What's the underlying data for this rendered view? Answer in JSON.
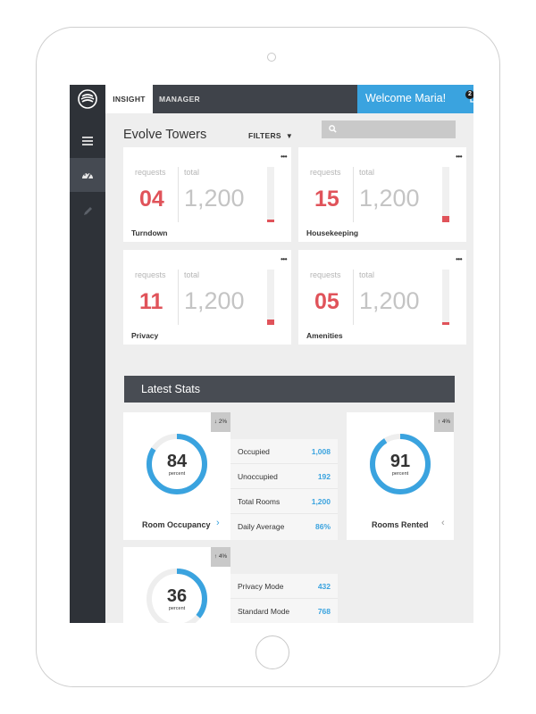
{
  "colors": {
    "accent_blue": "#3aa3df",
    "accent_red": "#e0535a",
    "sidebar": "#2e3238",
    "topbar": "#3f434a"
  },
  "sidebar": {
    "icons": [
      "logo-icon",
      "menu-icon",
      "dashboard-icon",
      "pencil-icon"
    ]
  },
  "topbar": {
    "tabs": [
      {
        "label": "INSIGHT",
        "active": true
      },
      {
        "label": "MANAGER",
        "active": false
      }
    ],
    "welcome": "Welcome Maria!",
    "notification_count": "2"
  },
  "header": {
    "title": "Evolve Towers",
    "filters_label": "FILTERS"
  },
  "cards": [
    {
      "name": "Turndown",
      "requests": "04",
      "total": "1,200",
      "requests_label": "requests",
      "total_label": "total",
      "fill": 0.05
    },
    {
      "name": "Housekeeping",
      "requests": "15",
      "total": "1,200",
      "requests_label": "requests",
      "total_label": "total",
      "fill": 0.12
    },
    {
      "name": "Privacy",
      "requests": "11",
      "total": "1,200",
      "requests_label": "requests",
      "total_label": "total",
      "fill": 0.09
    },
    {
      "name": "Amenities",
      "requests": "05",
      "total": "1,200",
      "requests_label": "requests",
      "total_label": "total",
      "fill": 0.05
    }
  ],
  "stats": {
    "title": "Latest Stats",
    "occupancy": {
      "name": "Room Occupancy",
      "value": "84",
      "unit": "percent",
      "trend": "↓ 2%",
      "percent": 84,
      "rows": [
        {
          "label": "Occupied",
          "value": "1,008"
        },
        {
          "label": "Unoccupied",
          "value": "192"
        },
        {
          "label": "Total Rooms",
          "value": "1,200"
        },
        {
          "label": "Daily Average",
          "value": "86%"
        }
      ]
    },
    "rented": {
      "name": "Rooms Rented",
      "value": "91",
      "unit": "percent",
      "trend": "↑ 4%",
      "percent": 91
    },
    "privacy": {
      "value": "36",
      "unit": "percent",
      "trend": "↑ 4%",
      "percent": 36,
      "rows": [
        {
          "label": "Privacy Mode",
          "value": "432"
        },
        {
          "label": "Standard Mode",
          "value": "768"
        }
      ]
    }
  }
}
